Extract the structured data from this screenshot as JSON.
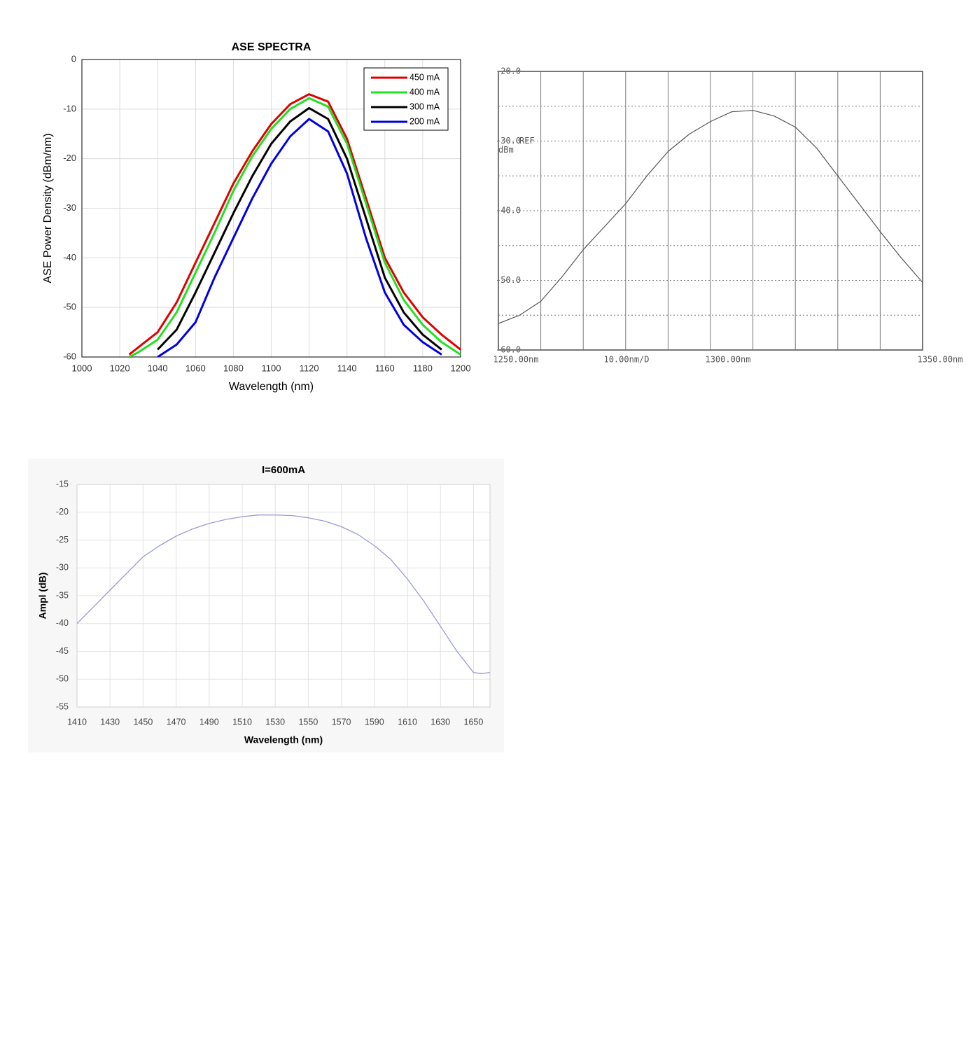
{
  "chart_data": [
    {
      "type": "line",
      "title": "ASE SPECTRA",
      "x_label": "Wavelength (nm)",
      "y_label": "ASE Power Density (dBm/nm)",
      "x": [
        1025,
        1030,
        1040,
        1050,
        1060,
        1070,
        1080,
        1090,
        1100,
        1110,
        1120,
        1130,
        1140,
        1150,
        1160,
        1170,
        1180,
        1190,
        1200
      ],
      "series": [
        {
          "name": "450 mA",
          "color": "#e00000",
          "values": [
            -59.5,
            -58,
            -55,
            -49,
            -41,
            -33,
            -25,
            -18.5,
            -13,
            -9,
            -7,
            -8.5,
            -16,
            -28,
            -40,
            -47,
            -52,
            -55.5,
            -58.5
          ]
        },
        {
          "name": "400 mA",
          "color": "#22e022",
          "values": [
            -60,
            -59,
            -56.5,
            -51,
            -43,
            -35,
            -26.5,
            -19.5,
            -14,
            -10,
            -7.8,
            -9.5,
            -17,
            -29,
            -41,
            -48.5,
            -53.5,
            -57,
            -59.5
          ]
        },
        {
          "name": "300 mA",
          "color": "#000000",
          "values": [
            null,
            null,
            -58.5,
            -54.5,
            -47,
            -39,
            -31,
            -23.5,
            -17,
            -12.5,
            -9.8,
            -12,
            -20,
            -32,
            -44,
            -51,
            -55.5,
            -58.5,
            null
          ]
        },
        {
          "name": "200 mA",
          "color": "#0000e0",
          "values": [
            null,
            null,
            -60,
            -57.5,
            -53,
            -44,
            -36,
            -28,
            -21,
            -15.5,
            -12,
            -14.5,
            -23,
            -36,
            -47,
            -53.5,
            -57,
            -59.5,
            null
          ]
        }
      ],
      "xlim": [
        1000,
        1200
      ],
      "xticks": [
        1000,
        1020,
        1040,
        1060,
        1080,
        1100,
        1120,
        1140,
        1160,
        1180,
        1200
      ],
      "ylim": [
        -60,
        0
      ],
      "yticks": [
        0,
        -10,
        -20,
        -30,
        -40,
        -50,
        -60
      ],
      "grid": true,
      "legend": "upper right"
    },
    {
      "type": "line",
      "annotations": [
        "10.00nm/D",
        "REF",
        "dBm"
      ],
      "x": [
        1250,
        1255,
        1260,
        1265,
        1270,
        1275,
        1280,
        1285,
        1290,
        1295,
        1300,
        1305,
        1310,
        1315,
        1320,
        1325,
        1330,
        1335,
        1340,
        1345,
        1350
      ],
      "values": [
        -56.2,
        -55,
        -53,
        -49.5,
        -45.6,
        -42.3,
        -39,
        -35,
        -31.5,
        -29,
        -27.2,
        -25.8,
        -25.6,
        -26.4,
        -28,
        -31,
        -35,
        -39,
        -43,
        -46.8,
        -50.3
      ],
      "color": "#555555",
      "xlim": [
        1250,
        1350
      ],
      "xticks": [
        {
          "value": 1250,
          "label": "1250.00nm"
        },
        {
          "value": 1300,
          "label": "1300.00nm"
        },
        {
          "value": 1350,
          "label": "1350.00nm"
        }
      ],
      "xminor": [
        1260,
        1270,
        1280,
        1290,
        1310,
        1320,
        1330,
        1340
      ],
      "ylim": [
        -60,
        -20
      ],
      "yticks": [
        {
          "value": -20,
          "label": "-20.0"
        },
        {
          "value": -30,
          "label": "-30.0"
        },
        {
          "value": -40,
          "label": "-40.0"
        },
        {
          "value": -50,
          "label": "-50.0"
        },
        {
          "value": -60,
          "label": "-60.0"
        }
      ],
      "yminor": [
        -25,
        -35,
        -45,
        -55
      ],
      "grid": true
    },
    {
      "type": "line",
      "title": "I=600mA",
      "x_label": "Wavelength (nm)",
      "y_label": "Ampl (dB)",
      "x": [
        1410,
        1420,
        1430,
        1440,
        1450,
        1460,
        1470,
        1480,
        1490,
        1500,
        1510,
        1520,
        1530,
        1540,
        1550,
        1560,
        1570,
        1580,
        1590,
        1600,
        1610,
        1620,
        1630,
        1640,
        1650,
        1655,
        1660
      ],
      "values": [
        -40,
        -37,
        -34,
        -31,
        -28,
        -26,
        -24.3,
        -23,
        -22,
        -21.3,
        -20.8,
        -20.5,
        -20.5,
        -20.6,
        -21,
        -21.6,
        -22.6,
        -24,
        -26,
        -28.5,
        -32,
        -36,
        -40.5,
        -45,
        -48.8,
        -49,
        -48.8
      ],
      "color": "#9a9ad6",
      "xlim": [
        1410,
        1660
      ],
      "xticks": [
        1410,
        1430,
        1450,
        1470,
        1490,
        1510,
        1530,
        1550,
        1570,
        1590,
        1610,
        1630,
        1650
      ],
      "ylim": [
        -55,
        -15
      ],
      "yticks": [
        -15,
        -20,
        -25,
        -30,
        -35,
        -40,
        -45,
        -50,
        -55
      ],
      "grid": true
    }
  ]
}
